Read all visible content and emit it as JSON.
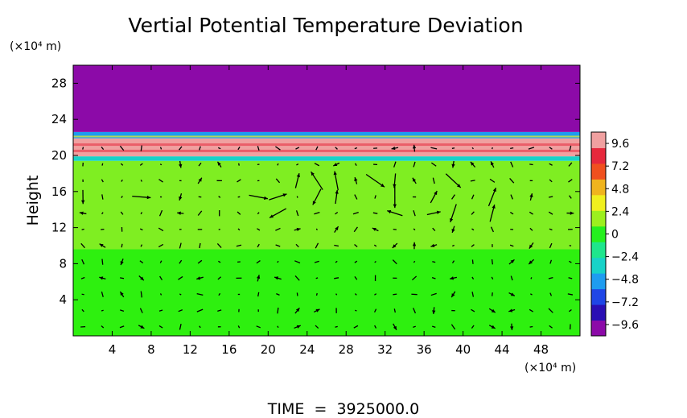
{
  "chart_data": {
    "type": "heatmap",
    "title": "Vertial Potential Temperature Deviation",
    "ylabel": "Height",
    "xlabel": "",
    "x_unit": "(×10⁴ m)",
    "y_unit": "(×10⁴ m)",
    "xlim": [
      0,
      52
    ],
    "ylim": [
      0,
      30
    ],
    "x_ticks": [
      4,
      8,
      12,
      16,
      20,
      24,
      28,
      32,
      36,
      40,
      44,
      48
    ],
    "y_ticks": [
      4,
      8,
      12,
      16,
      20,
      24,
      28
    ],
    "x_tick_labels": [
      "4",
      "8",
      "12",
      "16",
      "20",
      "24",
      "28",
      "32",
      "36",
      "40",
      "44",
      "48"
    ],
    "y_tick_labels": [
      "4",
      "8",
      "12",
      "16",
      "20",
      "24",
      "28"
    ],
    "colorbar": {
      "ticks": [
        9.6,
        7.2,
        4.8,
        2.4,
        0,
        -2.4,
        -4.8,
        -7.2,
        -9.6
      ],
      "tick_labels": [
        "9.6",
        "7.2",
        "4.8",
        "2.4",
        "0",
        "−2.4",
        "−4.8",
        "−7.2",
        "−9.6"
      ],
      "range": [
        -10.8,
        10.8
      ],
      "colors": [
        "#8c0aa8",
        "#2a0fb4",
        "#1f46e6",
        "#1e9cf0",
        "#17d2c8",
        "#1ee68c",
        "#25f01e",
        "#9cf01e",
        "#f0f01e",
        "#f0b41e",
        "#f0501e",
        "#e6283c",
        "#f0a0a0"
      ]
    },
    "field_bands": [
      {
        "y_from": 0,
        "y_to": 9.6,
        "value": 0.2,
        "color": "#2ef00f"
      },
      {
        "y_from": 9.6,
        "y_to": 19.4,
        "value": 1.0,
        "color": "#7fee22"
      },
      {
        "y_from": 19.4,
        "y_to": 19.9,
        "value": -3.0,
        "color": "#17d2c8"
      },
      {
        "y_from": 19.9,
        "y_to": 21.9,
        "value": 9.0,
        "color": "#f0a0a0"
      },
      {
        "y_from": 21.9,
        "y_to": 22.6,
        "value": -3.5,
        "color": "#1e9cf0"
      },
      {
        "y_from": 22.6,
        "y_to": 30,
        "value": -11.0,
        "color": "#8c0aa8"
      }
    ],
    "vector_field": {
      "description": "wind vectors (black arrows)",
      "x_spacing": 2,
      "y_spacing": 1.8
    },
    "time_label": "TIME  =  3925000.0"
  }
}
